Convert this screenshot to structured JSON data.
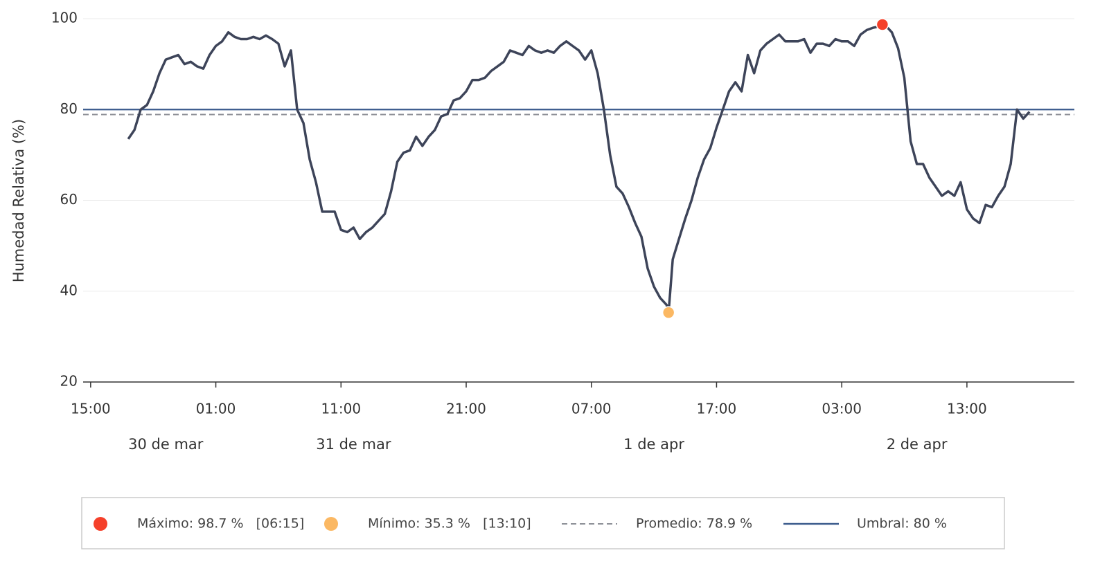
{
  "chart_data": {
    "type": "line",
    "ylabel": "Humedad Relativa (%)",
    "ylim": [
      20,
      100
    ],
    "yticks": [
      20,
      40,
      60,
      80,
      100
    ],
    "grid": true,
    "xlim": [
      "03-30T14:24",
      "04-02T21:35"
    ],
    "xticks": [
      {
        "value": "03-30T15:00",
        "label": "15:00"
      },
      {
        "value": "03-31T01:00",
        "label": "01:00"
      },
      {
        "value": "03-31T11:00",
        "label": "11:00"
      },
      {
        "value": "03-31T21:00",
        "label": "21:00"
      },
      {
        "value": "04-01T07:00",
        "label": "07:00"
      },
      {
        "value": "04-01T17:00",
        "label": "17:00"
      },
      {
        "value": "04-02T03:00",
        "label": "03:00"
      },
      {
        "value": "04-02T13:00",
        "label": "13:00"
      }
    ],
    "date_labels": [
      {
        "value": "03-30T21:00",
        "label": "30 de mar"
      },
      {
        "value": "03-31T12:00",
        "label": "31 de mar"
      },
      {
        "value": "04-01T12:00",
        "label": "1 de apr"
      },
      {
        "value": "04-02T09:00",
        "label": "2 de apr"
      }
    ],
    "series": [
      {
        "name": "Humedad Relativa",
        "color": "#3d4459",
        "x": [
          "03-30T18:00",
          "03-30T18:30",
          "03-30T19:00",
          "03-30T19:30",
          "03-30T20:00",
          "03-30T20:30",
          "03-30T21:00",
          "03-30T21:30",
          "03-30T22:00",
          "03-30T22:30",
          "03-30T23:00",
          "03-30T23:30",
          "03-31T00:00",
          "03-31T00:30",
          "03-31T01:00",
          "03-31T01:30",
          "03-31T02:00",
          "03-31T02:30",
          "03-31T03:00",
          "03-31T03:30",
          "03-31T04:00",
          "03-31T04:30",
          "03-31T05:00",
          "03-31T05:30",
          "03-31T06:00",
          "03-31T06:30",
          "03-31T07:00",
          "03-31T07:30",
          "03-31T08:00",
          "03-31T08:30",
          "03-31T09:00",
          "03-31T09:30",
          "03-31T10:00",
          "03-31T10:30",
          "03-31T11:00",
          "03-31T11:30",
          "03-31T12:00",
          "03-31T12:30",
          "03-31T13:00",
          "03-31T13:30",
          "03-31T14:00",
          "03-31T14:30",
          "03-31T15:00",
          "03-31T15:30",
          "03-31T16:00",
          "03-31T16:30",
          "03-31T17:00",
          "03-31T17:30",
          "03-31T18:00",
          "03-31T18:30",
          "03-31T19:00",
          "03-31T19:30",
          "03-31T20:00",
          "03-31T20:30",
          "03-31T21:00",
          "03-31T21:30",
          "03-31T22:00",
          "03-31T22:30",
          "03-31T23:00",
          "03-31T23:30",
          "04-01T00:00",
          "04-01T00:30",
          "04-01T01:00",
          "04-01T01:30",
          "04-01T02:00",
          "04-01T02:30",
          "04-01T03:00",
          "04-01T03:30",
          "04-01T04:00",
          "04-01T04:30",
          "04-01T05:00",
          "04-01T05:30",
          "04-01T06:00",
          "04-01T06:30",
          "04-01T07:00",
          "04-01T07:30",
          "04-01T08:00",
          "04-01T08:30",
          "04-01T09:00",
          "04-01T09:30",
          "04-01T10:00",
          "04-01T10:30",
          "04-01T11:00",
          "04-01T11:30",
          "04-01T12:00",
          "04-01T12:30",
          "04-01T13:00",
          "04-01T13:10",
          "04-01T13:30",
          "04-01T14:00",
          "04-01T14:30",
          "04-01T15:00",
          "04-01T15:30",
          "04-01T16:00",
          "04-01T16:30",
          "04-01T17:00",
          "04-01T17:30",
          "04-01T18:00",
          "04-01T18:30",
          "04-01T19:00",
          "04-01T19:30",
          "04-01T20:00",
          "04-01T20:30",
          "04-01T21:00",
          "04-01T21:30",
          "04-01T22:00",
          "04-01T22:30",
          "04-01T23:00",
          "04-01T23:30",
          "04-02T00:00",
          "04-02T00:30",
          "04-02T01:00",
          "04-02T01:30",
          "04-02T02:00",
          "04-02T02:30",
          "04-02T03:00",
          "04-02T03:30",
          "04-02T04:00",
          "04-02T04:30",
          "04-02T05:00",
          "04-02T05:30",
          "04-02T06:00",
          "04-02T06:15",
          "04-02T06:30",
          "04-02T07:00",
          "04-02T07:30",
          "04-02T08:00",
          "04-02T08:30",
          "04-02T09:00",
          "04-02T09:30",
          "04-02T10:00",
          "04-02T10:30",
          "04-02T11:00",
          "04-02T11:30",
          "04-02T12:00",
          "04-02T12:30",
          "04-02T13:00",
          "04-02T13:30",
          "04-02T14:00",
          "04-02T14:30",
          "04-02T15:00",
          "04-02T15:30",
          "04-02T16:00",
          "04-02T16:30",
          "04-02T17:00",
          "04-02T17:30",
          "04-02T18:00"
        ],
        "values": [
          73.5,
          75.5,
          80,
          81,
          84,
          88,
          91,
          91.5,
          92,
          90,
          90.5,
          89.5,
          89,
          92,
          94,
          95,
          97,
          96,
          95.5,
          95.5,
          96,
          95.5,
          96.3,
          95.5,
          94.5,
          89.5,
          93,
          80,
          77,
          69,
          64,
          57.5,
          57.5,
          57.5,
          53.5,
          53,
          54,
          51.5,
          53,
          54,
          55.5,
          57,
          62,
          68.5,
          70.5,
          71,
          74,
          72,
          74,
          75.5,
          78.5,
          79,
          82,
          82.5,
          84,
          86.5,
          86.5,
          87,
          88.5,
          89.5,
          90.5,
          93,
          92.5,
          92,
          94,
          93,
          92.5,
          93,
          92.5,
          94,
          95,
          94,
          93,
          91,
          93,
          88,
          80,
          70,
          63,
          61.5,
          58.5,
          55,
          52,
          45,
          41,
          38.5,
          37,
          35.3,
          47,
          51.5,
          56,
          60,
          65,
          69,
          71.5,
          76,
          80,
          84,
          86,
          84,
          92,
          88,
          93,
          94.5,
          95.5,
          96.5,
          95,
          95,
          95,
          95.5,
          92.5,
          94.5,
          94.5,
          94,
          95.5,
          95,
          95,
          94,
          96.5,
          97.5,
          98,
          98.3,
          98.7,
          98.5,
          97,
          93.5,
          87,
          73,
          68,
          68,
          65,
          63,
          61,
          62,
          61,
          64,
          58,
          56,
          55,
          59,
          58.5,
          61,
          63,
          68,
          80,
          78,
          79.5
        ]
      }
    ],
    "max": {
      "x": "04-02T06:15",
      "value": 98.7,
      "color": "#f5402a"
    },
    "min": {
      "x": "04-01T13:10",
      "value": 35.3,
      "color": "#fbb863"
    },
    "mean": {
      "value": 78.9,
      "color": "#8c8f96"
    },
    "threshold": {
      "value": 80,
      "color": "#3a5a8c"
    },
    "legend": [
      "Máximo: 98.7 %   [06:15]",
      "Mínimo: 35.3 %   [13:10]",
      "Promedio: 78.9 %",
      "Umbral: 80 %"
    ]
  }
}
